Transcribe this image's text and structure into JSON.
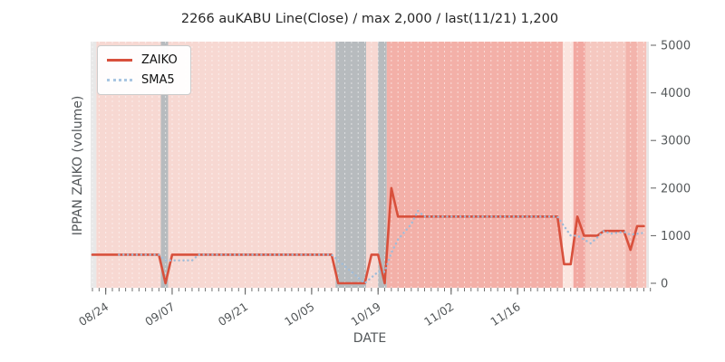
{
  "figure": {
    "title": "2266 auKABU Line(Close) / max 2,000 / last(11/21) 1,200",
    "xlabel": "DATE",
    "ylabel": "IPPAN ZAIKO (volume)"
  },
  "chart_data": {
    "type": "line",
    "title": "2266 auKABU Line(Close) / max 2,000 / last(11/21) 1,200",
    "xlabel": "DATE",
    "ylabel": "IPPAN ZAIKO (volume)",
    "ylim": [
      0,
      5000
    ],
    "yticks": [
      0,
      1000,
      2000,
      3000,
      4000,
      5000
    ],
    "x_major_ticks": [
      {
        "index": 2,
        "label": "08/24"
      },
      {
        "index": 12,
        "label": "09/07"
      },
      {
        "index": 23,
        "label": "09/21"
      },
      {
        "index": 33,
        "label": "10/05"
      },
      {
        "index": 43,
        "label": "10/19"
      },
      {
        "index": 54,
        "label": "11/02"
      },
      {
        "index": 64,
        "label": "11/16"
      }
    ],
    "num_points": 84,
    "legend_position": "upper left",
    "grid": "white dashed vertical per-day lines",
    "max_value": 2000,
    "last_value": 1200,
    "series": [
      {
        "name": "ZAIKO",
        "color": "#d8503c",
        "style": "solid",
        "values": [
          600,
          600,
          600,
          600,
          600,
          600,
          600,
          600,
          600,
          600,
          600,
          0,
          600,
          600,
          600,
          600,
          600,
          600,
          600,
          600,
          600,
          600,
          600,
          600,
          600,
          600,
          600,
          600,
          600,
          600,
          600,
          600,
          600,
          600,
          600,
          600,
          600,
          0,
          0,
          0,
          0,
          0,
          600,
          600,
          0,
          2000,
          1400,
          1400,
          1400,
          1400,
          1400,
          1400,
          1400,
          1400,
          1400,
          1400,
          1400,
          1400,
          1400,
          1400,
          1400,
          1400,
          1400,
          1400,
          1400,
          1400,
          1400,
          1400,
          1400,
          1400,
          1400,
          400,
          400,
          1400,
          1000,
          1000,
          1000,
          1100,
          1100,
          1100,
          1100,
          700,
          1200,
          1200
        ]
      },
      {
        "name": "SMA5",
        "color": "#9fbcd9",
        "style": "dotted",
        "values": [
          null,
          null,
          null,
          null,
          600,
          600,
          600,
          600,
          600,
          600,
          600,
          480,
          480,
          480,
          480,
          480,
          600,
          600,
          600,
          600,
          600,
          600,
          600,
          600,
          600,
          600,
          600,
          600,
          600,
          600,
          600,
          600,
          600,
          600,
          600,
          600,
          600,
          480,
          360,
          240,
          120,
          0,
          120,
          240,
          240,
          640,
          920,
          1080,
          1240,
          1520,
          1400,
          1400,
          1400,
          1400,
          1400,
          1400,
          1400,
          1400,
          1400,
          1400,
          1400,
          1400,
          1400,
          1400,
          1400,
          1400,
          1400,
          1400,
          1400,
          1400,
          1400,
          1200,
          1000,
          1000,
          920,
          840,
          960,
          1100,
          1040,
          1060,
          1080,
          1020,
          1040,
          1060
        ]
      }
    ],
    "band_colors": {
      "edge": "#e8e8e8",
      "pink": "#f7d8d2",
      "gray": "#b7bbbe",
      "salmon": "#f3b0a8",
      "pale": "#fbe5df",
      "salmonDark": "#f2a9a2",
      "pinkMid": "#f5c8c0",
      "salmonMid": "#f3b4ac",
      "pinkMid2": "#f6c2ba"
    },
    "bands": [
      [
        -0.3,
        0.6,
        "edge"
      ],
      [
        0.6,
        10.3,
        "pink"
      ],
      [
        10.3,
        11.4,
        "gray"
      ],
      [
        11.4,
        36.6,
        "pink"
      ],
      [
        36.6,
        41.2,
        "gray"
      ],
      [
        41.2,
        43.0,
        "pink"
      ],
      [
        43.0,
        44.3,
        "gray"
      ],
      [
        44.3,
        70.8,
        "salmon"
      ],
      [
        70.8,
        72.4,
        "pale"
      ],
      [
        72.4,
        74.2,
        "salmonDark"
      ],
      [
        74.2,
        80.3,
        "pinkMid"
      ],
      [
        80.3,
        82.0,
        "salmonMid"
      ],
      [
        82.0,
        83.4,
        "pinkMid2"
      ],
      [
        83.4,
        84.6,
        "edge"
      ]
    ],
    "tick_color": "#606060",
    "tick_label_color": "#54585a"
  }
}
